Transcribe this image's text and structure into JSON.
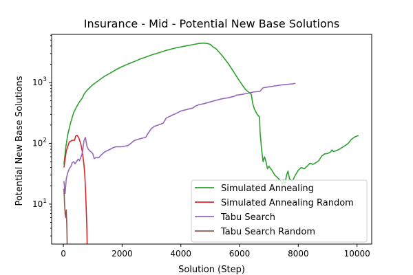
{
  "chart_data": {
    "type": "line",
    "title": "Insurance - Mid - Potential New Base Solutions",
    "xlabel": "Solution (Step)",
    "ylabel": "Potential New Base Solutions",
    "xlim": [
      -400,
      10500
    ],
    "ylim": [
      2.2,
      6200
    ],
    "yscale": "log",
    "grid": false,
    "legend_position": "lower-right",
    "x_ticks": [
      0,
      2000,
      4000,
      6000,
      8000,
      10000
    ],
    "x_tick_labels": [
      "0",
      "2000",
      "4000",
      "6000",
      "8000",
      "10000"
    ],
    "y_ticks": [
      10,
      100,
      1000
    ],
    "y_tick_labels": [
      "10^1",
      "10^2",
      "10^3"
    ],
    "series": [
      {
        "name": "Simulated Annealing",
        "color": "#2ca02c",
        "points": [
          [
            20,
            45
          ],
          [
            80,
            85
          ],
          [
            150,
            140
          ],
          [
            250,
            220
          ],
          [
            350,
            320
          ],
          [
            450,
            400
          ],
          [
            550,
            480
          ],
          [
            650,
            560
          ],
          [
            700,
            640
          ],
          [
            800,
            740
          ],
          [
            1000,
            920
          ],
          [
            1200,
            1080
          ],
          [
            1400,
            1270
          ],
          [
            1600,
            1430
          ],
          [
            1800,
            1640
          ],
          [
            2000,
            1830
          ],
          [
            2200,
            2010
          ],
          [
            2400,
            2200
          ],
          [
            2600,
            2420
          ],
          [
            2800,
            2620
          ],
          [
            3000,
            2840
          ],
          [
            3200,
            3040
          ],
          [
            3500,
            3380
          ],
          [
            3800,
            3680
          ],
          [
            4100,
            3950
          ],
          [
            4400,
            4200
          ],
          [
            4600,
            4380
          ],
          [
            4750,
            4450
          ],
          [
            4900,
            4400
          ],
          [
            5000,
            4250
          ],
          [
            5100,
            3850
          ],
          [
            5200,
            3600
          ],
          [
            5400,
            2800
          ],
          [
            5600,
            2100
          ],
          [
            5800,
            1500
          ],
          [
            5950,
            1150
          ],
          [
            6100,
            900
          ],
          [
            6200,
            770
          ],
          [
            6300,
            700
          ],
          [
            6400,
            640
          ],
          [
            6450,
            450
          ],
          [
            6500,
            370
          ],
          [
            6600,
            300
          ],
          [
            6680,
            270
          ],
          [
            6700,
            150
          ],
          [
            6750,
            80
          ],
          [
            6800,
            50
          ],
          [
            6850,
            60
          ],
          [
            6900,
            50
          ],
          [
            6950,
            38
          ],
          [
            7000,
            42
          ],
          [
            7100,
            36
          ],
          [
            7200,
            30
          ],
          [
            7300,
            27
          ],
          [
            7400,
            24
          ],
          [
            7450,
            21
          ],
          [
            7500,
            25
          ],
          [
            7550,
            22
          ],
          [
            7600,
            30
          ],
          [
            7650,
            35
          ],
          [
            7700,
            26
          ],
          [
            7800,
            24
          ],
          [
            7900,
            30
          ],
          [
            8000,
            36
          ],
          [
            8100,
            40
          ],
          [
            8200,
            38
          ],
          [
            8300,
            42
          ],
          [
            8400,
            47
          ],
          [
            8500,
            45
          ],
          [
            8600,
            48
          ],
          [
            8700,
            52
          ],
          [
            8800,
            62
          ],
          [
            8900,
            67
          ],
          [
            9000,
            68
          ],
          [
            9100,
            72
          ],
          [
            9150,
            78
          ],
          [
            9200,
            73
          ],
          [
            9300,
            76
          ],
          [
            9400,
            80
          ],
          [
            9500,
            86
          ],
          [
            9600,
            92
          ],
          [
            9700,
            100
          ],
          [
            9800,
            115
          ],
          [
            9900,
            125
          ],
          [
            10000,
            132
          ],
          [
            10050,
            134
          ]
        ]
      },
      {
        "name": "Simulated Annealing Random",
        "color": "#d62728",
        "points": [
          [
            20,
            40
          ],
          [
            100,
            75
          ],
          [
            200,
            105
          ],
          [
            300,
            112
          ],
          [
            380,
            112
          ],
          [
            420,
            132
          ],
          [
            470,
            135
          ],
          [
            520,
            125
          ],
          [
            600,
            95
          ],
          [
            650,
            70
          ],
          [
            700,
            45
          ],
          [
            730,
            30
          ],
          [
            760,
            15
          ],
          [
            780,
            8
          ],
          [
            800,
            4
          ],
          [
            810,
            2.2
          ]
        ]
      },
      {
        "name": "Tabu Search",
        "color": "#9467bd",
        "points": [
          [
            20,
            24
          ],
          [
            60,
            15
          ],
          [
            100,
            26
          ],
          [
            150,
            33
          ],
          [
            200,
            38
          ],
          [
            260,
            42
          ],
          [
            300,
            48
          ],
          [
            350,
            50
          ],
          [
            400,
            46
          ],
          [
            450,
            50
          ],
          [
            500,
            55
          ],
          [
            550,
            52
          ],
          [
            600,
            60
          ],
          [
            650,
            70
          ],
          [
            700,
            110
          ],
          [
            750,
            125
          ],
          [
            800,
            90
          ],
          [
            850,
            80
          ],
          [
            900,
            75
          ],
          [
            950,
            72
          ],
          [
            1000,
            68
          ],
          [
            1050,
            56
          ],
          [
            1100,
            58
          ],
          [
            1200,
            58
          ],
          [
            1300,
            65
          ],
          [
            1400,
            72
          ],
          [
            1500,
            76
          ],
          [
            1600,
            80
          ],
          [
            1700,
            85
          ],
          [
            1800,
            88
          ],
          [
            2000,
            88
          ],
          [
            2200,
            92
          ],
          [
            2300,
            100
          ],
          [
            2400,
            110
          ],
          [
            2500,
            115
          ],
          [
            2700,
            122
          ],
          [
            2800,
            125
          ],
          [
            2900,
            150
          ],
          [
            3000,
            175
          ],
          [
            3100,
            190
          ],
          [
            3300,
            205
          ],
          [
            3400,
            215
          ],
          [
            3500,
            260
          ],
          [
            3700,
            290
          ],
          [
            3900,
            320
          ],
          [
            4000,
            340
          ],
          [
            4200,
            360
          ],
          [
            4400,
            380
          ],
          [
            4500,
            410
          ],
          [
            4600,
            430
          ],
          [
            4800,
            450
          ],
          [
            5000,
            480
          ],
          [
            5200,
            510
          ],
          [
            5400,
            540
          ],
          [
            5600,
            560
          ],
          [
            5800,
            590
          ],
          [
            5900,
            620
          ],
          [
            6100,
            640
          ],
          [
            6300,
            670
          ],
          [
            6500,
            700
          ],
          [
            6700,
            720
          ],
          [
            6800,
            820
          ],
          [
            7000,
            850
          ],
          [
            7200,
            880
          ],
          [
            7400,
            910
          ],
          [
            7600,
            930
          ],
          [
            7800,
            950
          ],
          [
            7900,
            970
          ]
        ]
      },
      {
        "name": "Tabu Search Random",
        "color": "#8c564b",
        "points": [
          [
            20,
            18
          ],
          [
            40,
            10
          ],
          [
            60,
            7
          ],
          [
            80,
            6
          ],
          [
            100,
            8
          ],
          [
            120,
            4
          ],
          [
            130,
            2.2
          ]
        ]
      }
    ]
  }
}
